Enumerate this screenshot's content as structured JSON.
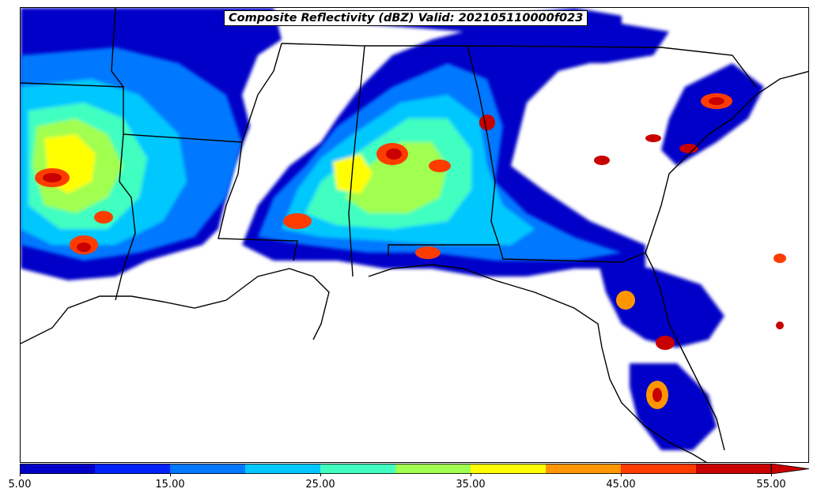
{
  "title": "Composite Reflectivity (dBZ) Valid: 202105110000f023",
  "colorbar": {
    "colors": [
      "#0000c8",
      "#0022ff",
      "#0078ff",
      "#00c8ff",
      "#40ffc0",
      "#a0ff50",
      "#ffff00",
      "#ff9600",
      "#ff3c00",
      "#c80000"
    ],
    "tick_labels": [
      "5.00",
      "15.00",
      "25.00",
      "35.00",
      "45.00",
      "55.00"
    ],
    "extend": "max"
  },
  "map": {
    "boundary_color": "#000000",
    "background": "#ffffff"
  }
}
